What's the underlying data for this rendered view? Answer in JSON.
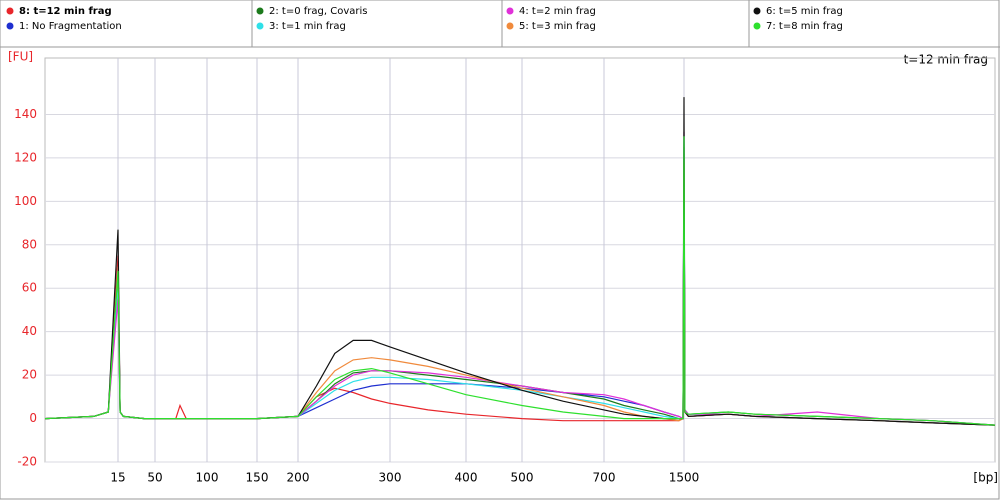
{
  "chart_data": {
    "type": "line",
    "y_label": "[FU]",
    "x_label": "[bp]",
    "annotation": "t=12 min frag",
    "x": [
      0,
      10,
      13,
      15,
      17,
      20,
      40,
      70,
      74,
      80,
      150,
      200,
      220,
      240,
      260,
      280,
      300,
      350,
      400,
      500,
      600,
      700,
      900,
      1100,
      1300,
      1450,
      1490,
      1500,
      1510,
      1550,
      2000,
      2300,
      3000,
      3700,
      4300,
      5000
    ],
    "xlim": [
      0,
      5000
    ],
    "xticks": [
      15,
      50,
      100,
      150,
      200,
      300,
      400,
      500,
      700,
      1500
    ],
    "ylim": [
      -20,
      166
    ],
    "yticks": [
      -20,
      0,
      20,
      40,
      60,
      80,
      100,
      120,
      140
    ],
    "grid": true,
    "series": [
      {
        "name": "8: t=12 min frag",
        "color": "#e8262b",
        "values": [
          0,
          1,
          3,
          75,
          3,
          1,
          0,
          0,
          6,
          0,
          0,
          1,
          10,
          14,
          12,
          9,
          7,
          4,
          2,
          0,
          -1,
          -1,
          -1,
          -1,
          -1,
          -1,
          0,
          120,
          3,
          1,
          2,
          1,
          0,
          -1,
          -2,
          -3
        ]
      },
      {
        "name": "1: No Fragmentation",
        "color": "#1f2fd0",
        "values": [
          0,
          1,
          3,
          70,
          3,
          1,
          0,
          0,
          0,
          0,
          0,
          1,
          5,
          9,
          13,
          15,
          16,
          16,
          16,
          14,
          12,
          10,
          8,
          6,
          3,
          1,
          0,
          130,
          4,
          1,
          2,
          1,
          0,
          -1,
          -2,
          -3
        ]
      },
      {
        "name": "2: t=0 frag, Covaris",
        "color": "#1c7a1c",
        "values": [
          0,
          1,
          3,
          65,
          3,
          1,
          0,
          0,
          0,
          0,
          0,
          1,
          8,
          16,
          21,
          22,
          22,
          20,
          18,
          15,
          12,
          9,
          6,
          4,
          2,
          0,
          0,
          125,
          4,
          2,
          3,
          2,
          1,
          0,
          -1,
          -3
        ]
      },
      {
        "name": "3: t=1 min frag",
        "color": "#2fe0e8",
        "values": [
          0,
          1,
          3,
          60,
          3,
          1,
          0,
          0,
          0,
          0,
          0,
          1,
          7,
          13,
          17,
          19,
          19,
          18,
          16,
          13,
          10,
          7,
          5,
          3,
          1,
          0,
          0,
          128,
          4,
          2,
          2,
          1,
          0,
          -1,
          -2,
          -3
        ]
      },
      {
        "name": "4: t=2 min frag",
        "color": "#e030d8",
        "values": [
          0,
          1,
          3,
          55,
          3,
          1,
          0,
          0,
          0,
          0,
          0,
          1,
          8,
          15,
          20,
          22,
          22,
          21,
          19,
          15,
          12,
          11,
          9,
          6,
          3,
          1,
          0,
          132,
          4,
          2,
          2,
          1,
          3,
          0,
          -1,
          -3
        ]
      },
      {
        "name": "5: t=3 min frag",
        "color": "#f08a3c",
        "values": [
          0,
          1,
          3,
          70,
          3,
          1,
          0,
          0,
          0,
          0,
          0,
          1,
          12,
          22,
          27,
          28,
          27,
          24,
          20,
          14,
          10,
          6,
          3,
          1,
          0,
          -1,
          0,
          118,
          3,
          1,
          2,
          1,
          0,
          -1,
          -2,
          -3
        ]
      },
      {
        "name": "6: t=5 min frag",
        "color": "#111111",
        "values": [
          0,
          1,
          3,
          87,
          3,
          1,
          0,
          0,
          0,
          0,
          0,
          1,
          15,
          30,
          36,
          36,
          33,
          27,
          21,
          13,
          8,
          4,
          2,
          1,
          0,
          0,
          0,
          148,
          3,
          1,
          2,
          1,
          0,
          -1,
          -2,
          -3
        ]
      },
      {
        "name": "7: t=8 min frag",
        "color": "#2ee02e",
        "values": [
          0,
          1,
          3,
          68,
          3,
          1,
          0,
          0,
          0,
          0,
          0,
          1,
          10,
          18,
          22,
          23,
          21,
          16,
          11,
          6,
          3,
          1,
          0,
          0,
          0,
          0,
          0,
          130,
          3,
          2,
          3,
          2,
          1,
          0,
          -1,
          -3
        ]
      }
    ]
  }
}
